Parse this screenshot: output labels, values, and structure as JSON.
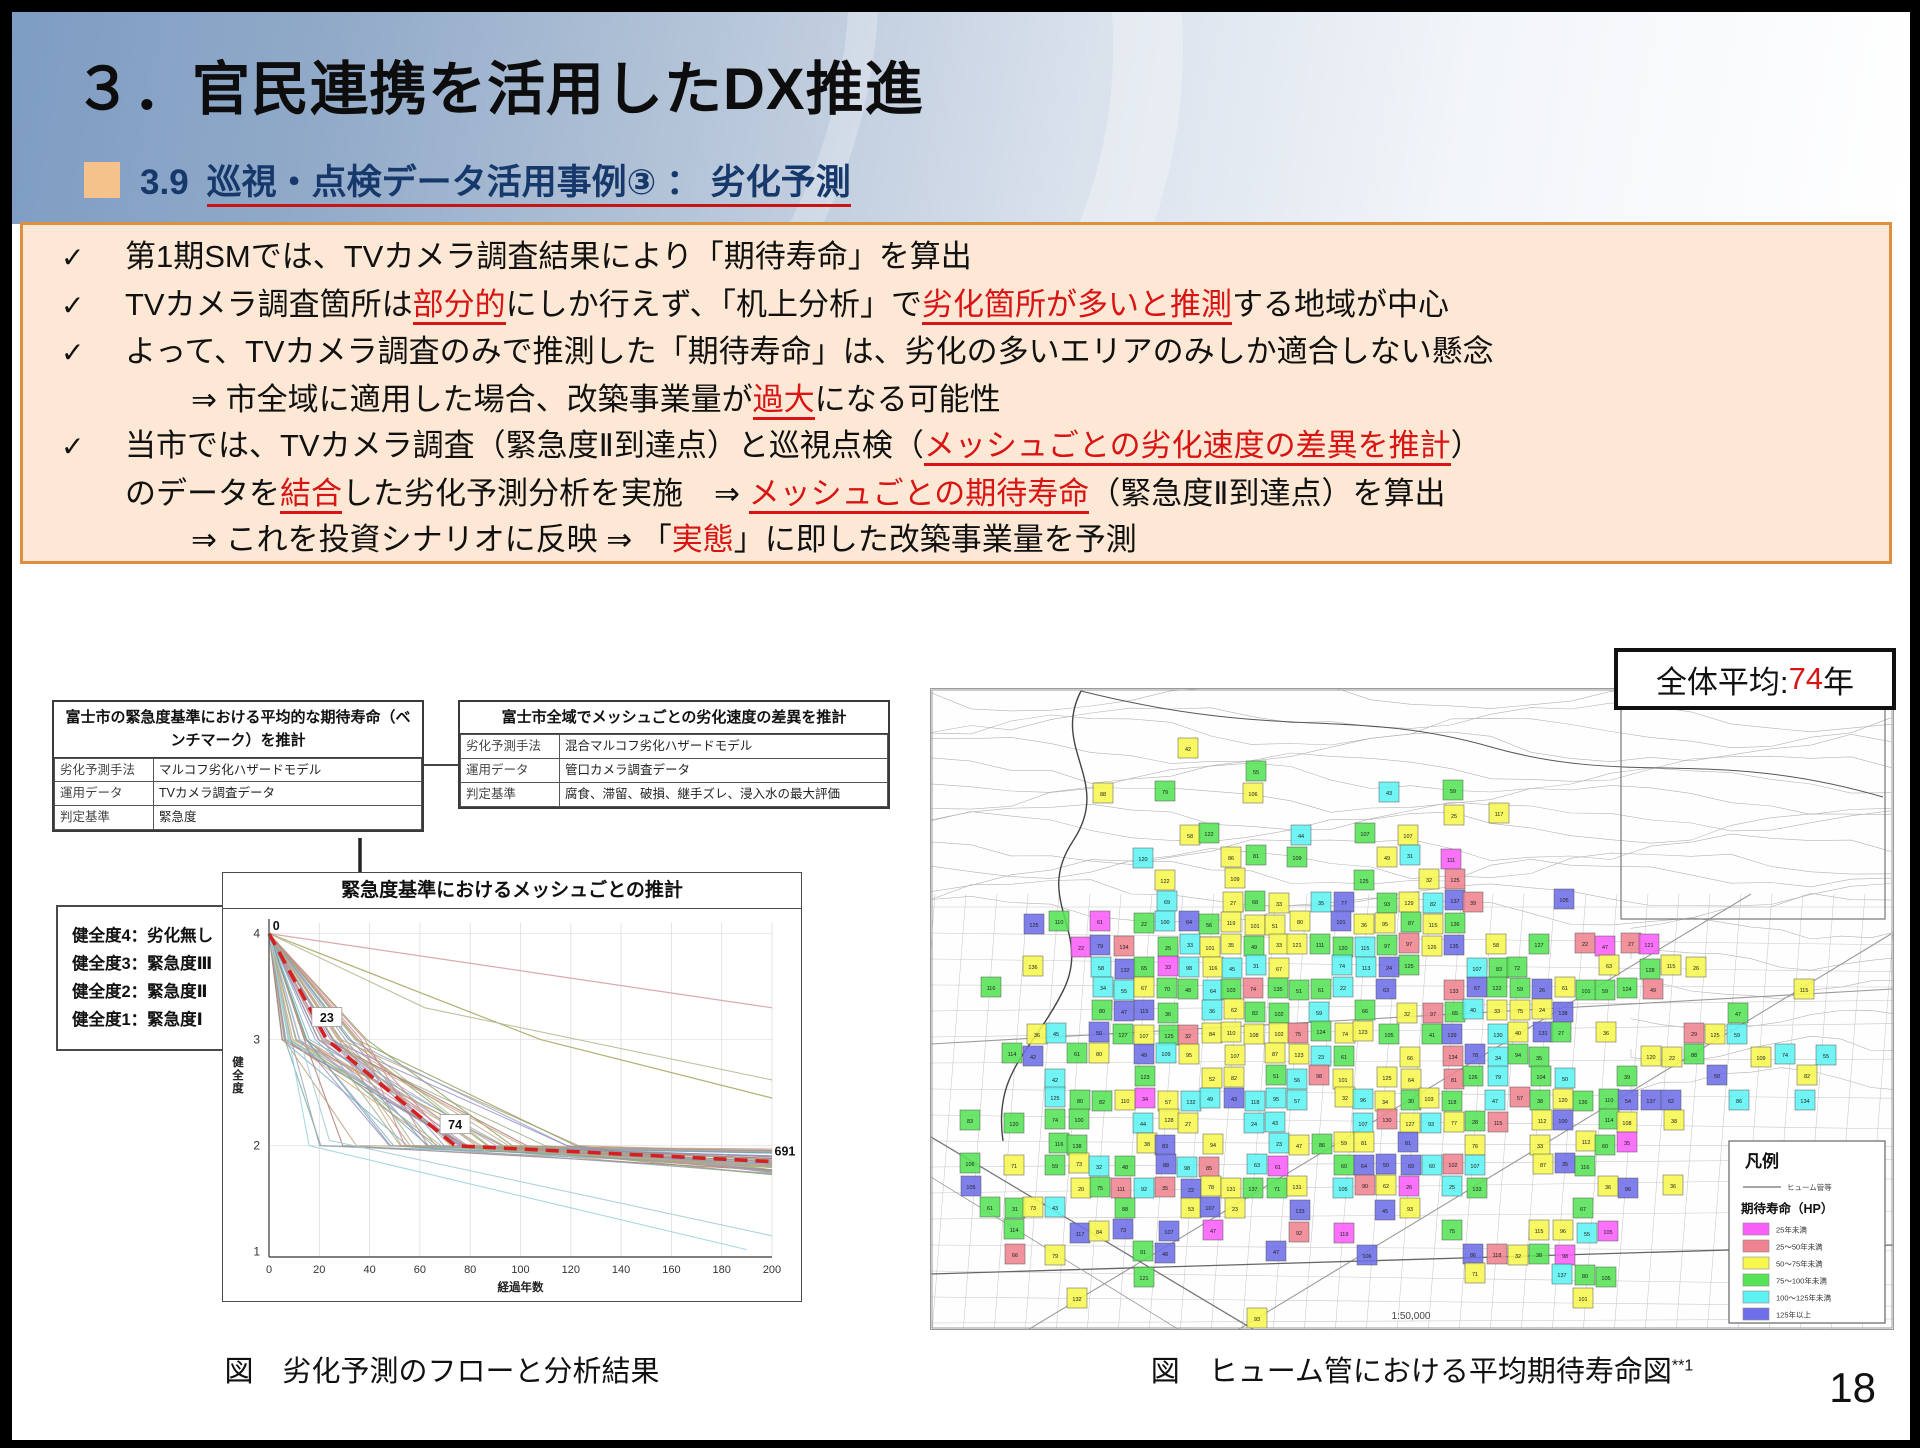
{
  "slide": {
    "title": "３．官民連携を活用したDX推進",
    "subtitle_num": "3.9",
    "subtitle": "巡視・点検データ活用事例③ ： 劣化予測",
    "page_number": "18"
  },
  "summary_box": {
    "check_glyph": "✓",
    "bullets": [
      {
        "indent": "none",
        "check": true,
        "segments": [
          {
            "t": "第1期SMでは、TVカメラ調査結果により「期待寿命」を算出"
          }
        ]
      },
      {
        "indent": "none",
        "check": true,
        "segments": [
          {
            "t": "TVカメラ調査箇所は"
          },
          {
            "t": "部分的",
            "red": true,
            "u": true
          },
          {
            "t": "にしか行えず、「机上分析」で"
          },
          {
            "t": "劣化箇所が多いと推測",
            "red": true,
            "u": true
          },
          {
            "t": "する地域が中心"
          }
        ]
      },
      {
        "indent": "none",
        "check": true,
        "segments": [
          {
            "t": "よって、TVカメラ調査のみで推測した「期待寿命」は、劣化の多いエリアのみしか適合しない懸念"
          }
        ]
      },
      {
        "indent": "one",
        "check": false,
        "segments": [
          {
            "t": "⇒ 市全域に適用した場合、改築事業量が"
          },
          {
            "t": "過大",
            "red": true,
            "u": true
          },
          {
            "t": "になる可能性"
          }
        ]
      },
      {
        "indent": "none",
        "check": true,
        "segments": [
          {
            "t": "当市では、TVカメラ調査（緊急度Ⅱ到達点）と巡視点検（"
          },
          {
            "t": "メッシュごとの劣化速度の差異を推計",
            "red": true,
            "u": true
          },
          {
            "t": "）"
          }
        ]
      },
      {
        "indent": "half",
        "check": false,
        "segments": [
          {
            "t": "のデータを"
          },
          {
            "t": "結合",
            "red": true,
            "u": true
          },
          {
            "t": "した劣化予測分析を実施　⇒ "
          },
          {
            "t": "メッシュごとの期待寿命",
            "red": true,
            "u": true
          },
          {
            "t": "（緊急度Ⅱ到達点）を算出"
          }
        ]
      },
      {
        "indent": "one",
        "check": false,
        "segments": [
          {
            "t": "⇒ これを投資シナリオに反映 ⇒ 「"
          },
          {
            "t": "実態",
            "red": true
          },
          {
            "t": "」に即した改築事業量を予測"
          }
        ]
      }
    ]
  },
  "flow_figure": {
    "table_left": {
      "title": "富士市の緊急度基準における平均的な期待寿命（ベンチマーク）を推計",
      "rows": [
        [
          "劣化予測手法",
          "マルコフ劣化ハザードモデル"
        ],
        [
          "運用データ",
          "TVカメラ調査データ"
        ],
        [
          "判定基準",
          "緊急度"
        ]
      ]
    },
    "table_right": {
      "title": "富士市全域でメッシュごとの劣化速度の差異を推計",
      "rows": [
        [
          "劣化予測手法",
          "混合マルコフ劣化ハザードモデル"
        ],
        [
          "運用データ",
          "管口カメラ調査データ"
        ],
        [
          "判定基準",
          "腐食、滞留、破損、継手ズレ、浸入水の最大評価"
        ]
      ]
    },
    "caption": "図　劣化予測のフローと分析結果"
  },
  "chart_data": {
    "type": "line",
    "title": "緊急度基準におけるメッシュごとの推計",
    "xlabel": "経過年数",
    "ylabel": "健全度",
    "xlim": [
      0,
      200
    ],
    "ylim": [
      1,
      4
    ],
    "xticks": [
      0,
      20,
      40,
      60,
      80,
      100,
      120,
      140,
      160,
      180,
      200
    ],
    "yticks": [
      4,
      3,
      2,
      1
    ],
    "grid": true,
    "legend_box": [
      "健全度4：劣化無し",
      "健全度3：緊急度Ⅲ",
      "健全度2：緊急度Ⅱ",
      "健全度1：緊急度Ⅰ"
    ],
    "benchmark": {
      "points": [
        [
          0,
          4
        ],
        [
          23,
          3
        ],
        [
          74,
          2
        ],
        [
          200,
          1.85
        ]
      ],
      "color": "#d42020",
      "dashed": true
    },
    "annotations": [
      {
        "text": "0",
        "x": 1.5,
        "y": 4.05,
        "box": false
      },
      {
        "text": "23",
        "x": 23,
        "y": 3.18,
        "box": true
      },
      {
        "text": "74",
        "x": 74,
        "y": 2.17,
        "box": true
      },
      {
        "text": "691",
        "x": 201,
        "y": 1.92,
        "box": false
      }
    ],
    "mesh_lines": {
      "count": 52,
      "t1_range": [
        5,
        39
      ],
      "t2_add_range": [
        10,
        95
      ],
      "final_range": [
        1.72,
        1.97
      ],
      "description": "per-mesh deterioration curves from health 4 down through 3 and 2, flattening near 1.8-2 by year 200"
    }
  },
  "map_figure": {
    "overall_average_label": "全体平均:",
    "overall_average_value": "74",
    "overall_average_suffix": "年",
    "scale_label": "1:50,000",
    "legend": {
      "title": "凡例",
      "line_label": "ヒューム管等",
      "subtitle": "期待寿命（HP）",
      "items": [
        {
          "label": "25年未満",
          "color": "#f95ef9"
        },
        {
          "label": "25～50年未満",
          "color": "#ef8490"
        },
        {
          "label": "50～75年未満",
          "color": "#f7f74e"
        },
        {
          "label": "75～100年未満",
          "color": "#55e455"
        },
        {
          "label": "100～125年未満",
          "color": "#5df2f2"
        },
        {
          "label": "125年以上",
          "color": "#6e6ee8"
        }
      ]
    },
    "color_weights": [
      0.03,
      0.1,
      0.31,
      0.28,
      0.15,
      0.13
    ],
    "caption": "図　ヒューム管における平均期待寿命図",
    "caption_sup": "**1"
  }
}
